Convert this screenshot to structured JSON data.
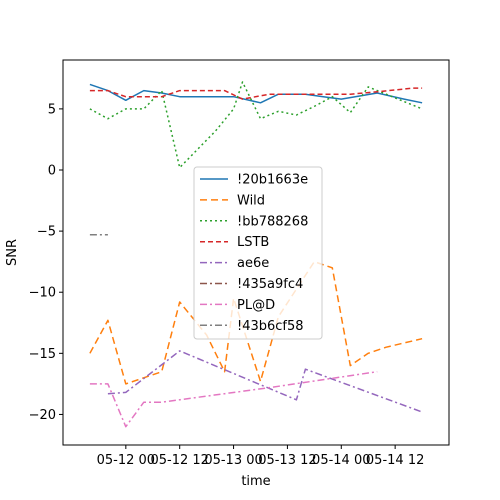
{
  "chart_data": {
    "type": "line",
    "xlabel": "time",
    "ylabel": "SNR",
    "x_ticks": [
      "05-12 00",
      "05-12 12",
      "05-13 00",
      "05-13 12",
      "05-14 00",
      "05-14 12"
    ],
    "y_ticks": [
      "−20",
      "−15",
      "−10",
      "−5",
      "0",
      "5"
    ],
    "xlim": [
      "2024-05-11 10:00",
      "2024-05-15 00:00"
    ],
    "ylim": [
      -22.5,
      9.0
    ],
    "grid": false,
    "legend_position": "center",
    "series": [
      {
        "name": "!20b1663e",
        "color": "#1f77b4",
        "dash": "solid",
        "points": [
          [
            "2024-05-11 16:00",
            7.0
          ],
          [
            "2024-05-11 20:00",
            6.5
          ],
          [
            "2024-05-12 00:00",
            5.7
          ],
          [
            "2024-05-12 04:00",
            6.5
          ],
          [
            "2024-05-12 08:00",
            6.3
          ],
          [
            "2024-05-12 12:00",
            6.0
          ],
          [
            "2024-05-12 20:00",
            6.0
          ],
          [
            "2024-05-13 00:00",
            6.0
          ],
          [
            "2024-05-13 06:00",
            5.5
          ],
          [
            "2024-05-13 10:00",
            6.2
          ],
          [
            "2024-05-13 16:00",
            6.2
          ],
          [
            "2024-05-13 20:00",
            6.0
          ],
          [
            "2024-05-14 00:00",
            5.8
          ],
          [
            "2024-05-14 08:00",
            6.3
          ],
          [
            "2024-05-14 14:00",
            5.8
          ],
          [
            "2024-05-14 18:00",
            5.5
          ]
        ]
      },
      {
        "name": "Wild",
        "color": "#ff7f0e",
        "dash": "7,4",
        "points": [
          [
            "2024-05-11 16:00",
            -15.0
          ],
          [
            "2024-05-11 20:00",
            -12.3
          ],
          [
            "2024-05-12 00:00",
            -17.5
          ],
          [
            "2024-05-12 08:00",
            -16.5
          ],
          [
            "2024-05-12 12:00",
            -10.8
          ],
          [
            "2024-05-12 18:00",
            -13.5
          ],
          [
            "2024-05-12 22:00",
            -16.5
          ],
          [
            "2024-05-13 00:00",
            -10.5
          ],
          [
            "2024-05-13 06:00",
            -17.3
          ],
          [
            "2024-05-13 10:00",
            -12.0
          ],
          [
            "2024-05-13 18:00",
            -7.5
          ],
          [
            "2024-05-13 22:00",
            -8.0
          ],
          [
            "2024-05-14 02:00",
            -16.0
          ],
          [
            "2024-05-14 06:00",
            -15.0
          ],
          [
            "2024-05-14 10:00",
            -14.5
          ],
          [
            "2024-05-14 18:00",
            -13.8
          ]
        ]
      },
      {
        "name": "!bb788268",
        "color": "#2ca02c",
        "dash": "2,3",
        "points": [
          [
            "2024-05-11 16:00",
            5.0
          ],
          [
            "2024-05-11 20:00",
            4.2
          ],
          [
            "2024-05-12 00:00",
            5.0
          ],
          [
            "2024-05-12 04:00",
            5.0
          ],
          [
            "2024-05-12 08:00",
            6.5
          ],
          [
            "2024-05-12 12:00",
            0.2
          ],
          [
            "2024-05-12 20:00",
            3.2
          ],
          [
            "2024-05-13 00:00",
            5.0
          ],
          [
            "2024-05-13 02:00",
            7.2
          ],
          [
            "2024-05-13 06:00",
            4.2
          ],
          [
            "2024-05-13 10:00",
            4.8
          ],
          [
            "2024-05-13 14:00",
            4.5
          ],
          [
            "2024-05-13 18:00",
            5.2
          ],
          [
            "2024-05-13 22:00",
            6.0
          ],
          [
            "2024-05-14 02:00",
            4.7
          ],
          [
            "2024-05-14 06:00",
            6.8
          ],
          [
            "2024-05-14 18:00",
            5.0
          ]
        ]
      },
      {
        "name": "LSTB",
        "color": "#d62728",
        "dash": "5,3",
        "points": [
          [
            "2024-05-11 16:00",
            6.5
          ],
          [
            "2024-05-11 20:00",
            6.5
          ],
          [
            "2024-05-12 00:00",
            6.0
          ],
          [
            "2024-05-12 08:00",
            6.0
          ],
          [
            "2024-05-12 12:00",
            6.5
          ],
          [
            "2024-05-12 18:00",
            6.5
          ],
          [
            "2024-05-12 22:00",
            6.5
          ],
          [
            "2024-05-13 02:00",
            5.8
          ],
          [
            "2024-05-13 08:00",
            6.2
          ],
          [
            "2024-05-13 16:00",
            6.2
          ],
          [
            "2024-05-13 22:00",
            6.2
          ],
          [
            "2024-05-14 02:00",
            6.2
          ],
          [
            "2024-05-14 08:00",
            6.4
          ],
          [
            "2024-05-14 16:00",
            6.7
          ],
          [
            "2024-05-14 18:00",
            6.7
          ]
        ]
      },
      {
        "name": "ae6e",
        "color": "#9467bd",
        "dash": "7,3,2,3",
        "points": [
          [
            "2024-05-11 20:00",
            -18.3
          ],
          [
            "2024-05-12 00:00",
            -18.2
          ],
          [
            "2024-05-12 12:00",
            -14.8
          ],
          [
            "2024-05-13 14:00",
            -18.8
          ],
          [
            "2024-05-13 16:00",
            -16.3
          ],
          [
            "2024-05-14 18:00",
            -19.8
          ]
        ]
      },
      {
        "name": "!435a9fc4",
        "color": "#8c564b",
        "dash": "7,3,2,3",
        "points": []
      },
      {
        "name": "PL@D",
        "color": "#e377c2",
        "dash": "7,3,2,3",
        "points": [
          [
            "2024-05-11 16:00",
            -17.5
          ],
          [
            "2024-05-11 20:00",
            -17.5
          ],
          [
            "2024-05-12 00:00",
            -21.0
          ],
          [
            "2024-05-12 04:00",
            -19.0
          ],
          [
            "2024-05-12 08:00",
            -19.0
          ],
          [
            "2024-05-13 08:00",
            -17.8
          ],
          [
            "2024-05-14 08:00",
            -16.5
          ]
        ]
      },
      {
        "name": "!43b6cf58",
        "color": "#7f7f7f",
        "dash": "7,3,2,3",
        "points": [
          [
            "2024-05-11 16:00",
            -5.3
          ],
          [
            "2024-05-11 20:00",
            -5.3
          ]
        ]
      }
    ]
  }
}
